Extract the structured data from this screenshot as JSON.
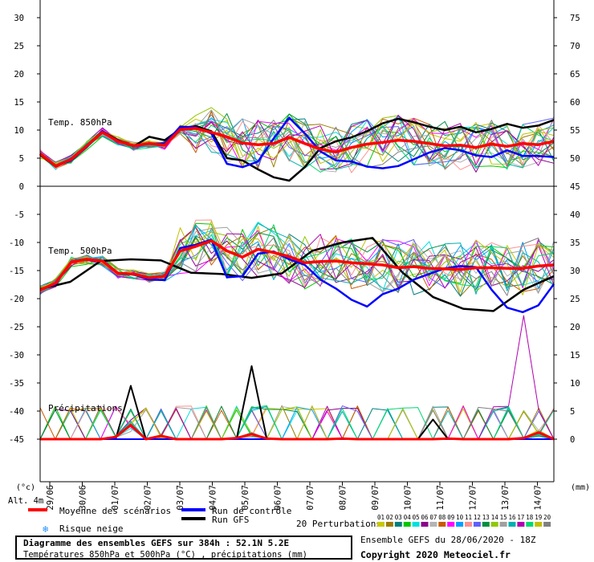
{
  "chart_data": {
    "type": "line",
    "dates": [
      "29/06",
      "30/06",
      "01/07",
      "02/07",
      "03/07",
      "04/07",
      "05/07",
      "06/07",
      "07/07",
      "08/07",
      "09/07",
      "10/07",
      "11/07",
      "12/07",
      "13/07",
      "14/07"
    ],
    "left_axis": {
      "unit": "(°c)",
      "ticks": [
        30,
        25,
        20,
        15,
        10,
        5,
        0,
        -5,
        -10,
        -15,
        -20,
        -25,
        -30,
        -35,
        -40,
        -45
      ]
    },
    "right_axis": {
      "unit": "(mm)",
      "upper_ticks": [
        75,
        70,
        65,
        60,
        55,
        50,
        45
      ],
      "lower_ticks": [
        40,
        35,
        30,
        25,
        20,
        15,
        10,
        5,
        0
      ]
    },
    "altitude_label": "Alt. 4m",
    "panels": {
      "t850": {
        "label": "Temp. 850hPa",
        "mean": [
          5.8,
          3.6,
          4.8,
          7.2,
          9.6,
          8.0,
          7.2,
          7.6,
          7.3,
          10.1,
          10.3,
          9.6,
          8.8,
          7.7,
          7.4,
          7.6,
          8.7,
          7.6,
          6.6,
          6.1,
          6.9,
          7.5,
          7.8,
          8.2,
          8.0,
          7.6,
          7.2,
          7.3,
          6.9,
          7.5,
          7.1,
          7.6,
          7.4,
          8.0
        ],
        "control": [
          5.8,
          3.6,
          4.6,
          7.0,
          9.8,
          8.0,
          7.2,
          7.6,
          7.6,
          10.6,
          10.5,
          9.4,
          4.0,
          3.4,
          4.4,
          8.5,
          12.2,
          9.4,
          6.2,
          4.6,
          4.4,
          3.5,
          3.2,
          3.6,
          4.8,
          6.0,
          6.8,
          6.4,
          5.5,
          5.2,
          6.4,
          5.4,
          5.4,
          5.2
        ],
        "gfs": [
          5.6,
          3.5,
          4.9,
          7.2,
          9.8,
          8.2,
          7.1,
          8.8,
          8.2,
          10.2,
          10.7,
          9.8,
          5.0,
          4.6,
          3.0,
          1.6,
          1.0,
          3.4,
          6.8,
          8.0,
          8.7,
          9.8,
          11.2,
          12.0,
          11.4,
          10.6,
          10.0,
          10.6,
          9.6,
          10.2,
          11.1,
          10.4,
          10.8,
          11.8
        ],
        "perturbations_range": [
          1,
          18
        ]
      },
      "t500": {
        "label": "Temp. 500hPa",
        "mean": [
          -18.5,
          -17.2,
          -13.5,
          -13.0,
          -13.3,
          -15.5,
          -15.6,
          -16.3,
          -16.0,
          -11.5,
          -10.7,
          -9.7,
          -11.5,
          -12.6,
          -11.2,
          -11.8,
          -12.5,
          -13.6,
          -13.4,
          -13.3,
          -13.6,
          -13.8,
          -14.0,
          -14.5,
          -14.3,
          -14.6,
          -14.7,
          -14.8,
          -14.5,
          -14.5,
          -14.6,
          -14.6,
          -14.2,
          -14.0
        ],
        "control": [
          -18.5,
          -17.4,
          -13.4,
          -13.0,
          -13.3,
          -15.6,
          -15.7,
          -16.6,
          -16.7,
          -11.0,
          -10.4,
          -9.5,
          -16.2,
          -16.0,
          -12.0,
          -11.6,
          -13.0,
          -14.0,
          -16.6,
          -18.2,
          -20.2,
          -21.4,
          -19.2,
          -18.2,
          -16.6,
          -15.6,
          -14.6,
          -14.2,
          -14.4,
          -18.4,
          -21.6,
          -22.4,
          -21.2,
          -17.4
        ],
        "gfs": [
          -18.3,
          -17.0,
          -13.3,
          -13.0,
          -13.2,
          -15.4,
          -15.6,
          -16.3,
          -15.5,
          -11.5,
          -10.0,
          -9.2,
          -15.4,
          -19.7,
          -21.8,
          -22.2,
          -18.4,
          -16.0
        ],
        "perturbations_range": [
          -26,
          -6
        ]
      },
      "precip": {
        "label": "Précipitations",
        "mean": [
          0,
          0,
          0,
          0,
          0,
          0.4,
          2.5,
          0,
          0.6,
          0,
          0,
          0,
          0,
          0.2,
          0.9,
          0.1,
          0,
          0,
          0,
          0,
          0.1,
          0,
          0,
          0,
          0,
          0,
          0,
          0.1,
          0,
          0,
          0,
          0,
          0.2,
          1.2,
          0
        ],
        "control": [
          0,
          0,
          0,
          0,
          0,
          0,
          0,
          0,
          0,
          0,
          0,
          0,
          0,
          0,
          0,
          0,
          0,
          0,
          0,
          0,
          0,
          0,
          0,
          0,
          0,
          0,
          0,
          0,
          0,
          0,
          0,
          0,
          0,
          0,
          0
        ],
        "gfs": [
          0,
          0,
          0,
          0,
          0,
          0,
          9.5,
          0,
          0,
          0,
          0,
          0,
          0,
          0,
          13.0,
          0,
          0,
          0,
          0,
          0,
          0,
          0,
          0,
          0,
          0,
          0,
          3.5,
          0,
          0,
          0,
          0,
          0,
          0,
          0,
          0
        ],
        "max_perturbation": 22
      }
    }
  },
  "legend": {
    "mean_label": "Moyenne des scénarios",
    "control_label": "Run de contrôle",
    "gfs_label": "Run GFS",
    "snow_label": "Risque neige",
    "perturbations_label": "20 Perturbations",
    "perturbation_ids": [
      "01",
      "02",
      "03",
      "04",
      "05",
      "06",
      "07",
      "08",
      "09",
      "10",
      "11",
      "12",
      "13",
      "14",
      "15",
      "16",
      "17",
      "18",
      "19",
      "20"
    ],
    "perturbation_colors": [
      "#c8c800",
      "#9b7b00",
      "#008080",
      "#00c800",
      "#00e0e0",
      "#8b008b",
      "#b4b4b4",
      "#c85a00",
      "#ff00ff",
      "#00a0ff",
      "#ff9090",
      "#6060ff",
      "#009040",
      "#90c800",
      "#a0a0a0",
      "#00b0b0",
      "#b000b0",
      "#00d870",
      "#c0c000",
      "#808080"
    ],
    "mean_color": "#ff0000",
    "control_color": "#0000ff",
    "gfs_color": "#000000"
  },
  "footer": {
    "title": "Diagramme des ensembles GEFS sur 384h : 52.1N 5.2E",
    "subtitle": "Températures 850hPa et 500hPa (°C) , précipitations (mm)",
    "ensemble_info": "Ensemble GEFS du 28/06/2020 - 18Z",
    "copyright": "Copyright 2020 Meteociel.fr"
  }
}
